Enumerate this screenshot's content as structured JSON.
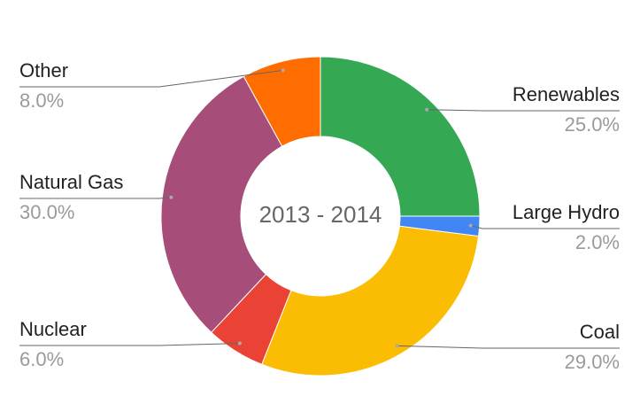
{
  "chart_data": {
    "type": "donut",
    "center_text": "2013 - 2014",
    "categories": [
      "Renewables",
      "Large Hydro",
      "Coal",
      "Nuclear",
      "Natural Gas",
      "Other"
    ],
    "values": [
      25,
      2,
      29,
      6,
      30,
      8
    ],
    "value_labels": [
      "25.0%",
      "2.0%",
      "29.0%",
      "6.0%",
      "30.0%",
      "8.0%"
    ],
    "colors": [
      "#34a853",
      "#4285f4",
      "#fbbc04",
      "#ea4335",
      "#a64d79",
      "#ff6d01"
    ]
  }
}
